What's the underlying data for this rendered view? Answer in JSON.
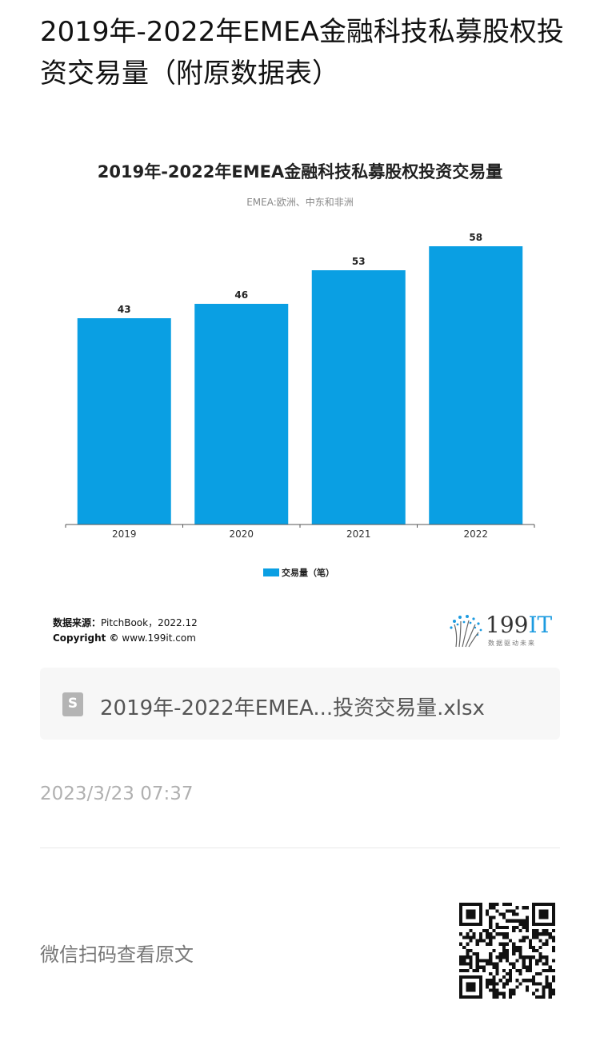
{
  "page": {
    "title": "2019年-2022年EMEA金融科技私募股权投资交易量（附原数据表）"
  },
  "chart_data": {
    "type": "bar",
    "title": "2019年-2022年EMEA金融科技私募股权投资交易量",
    "subtitle": "EMEA:欧洲、中东和非洲",
    "categories": [
      "2019",
      "2020",
      "2021",
      "2022"
    ],
    "series": [
      {
        "name": "交易量（笔）",
        "values": [
          43,
          46,
          53,
          58
        ],
        "color": "#0a9fe3"
      }
    ],
    "ylim": [
      0,
      60
    ],
    "grid": false,
    "legend": "bottom-center"
  },
  "chart_footer": {
    "source_label": "数据来源：",
    "source_value": "PitchBook，2022.12",
    "copyright_label": "Copyright ©",
    "copyright_value": "www.199it.com",
    "logo_main": "199",
    "logo_accent": "IT",
    "logo_tagline": "数据驱动未来"
  },
  "attachment": {
    "file_name": "2019年-2022年EMEA...投资交易量.xlsx",
    "icon": "spreadsheet-file-icon"
  },
  "meta": {
    "timestamp": "2023/3/23 07:37",
    "scan_text": "微信扫码查看原文"
  }
}
